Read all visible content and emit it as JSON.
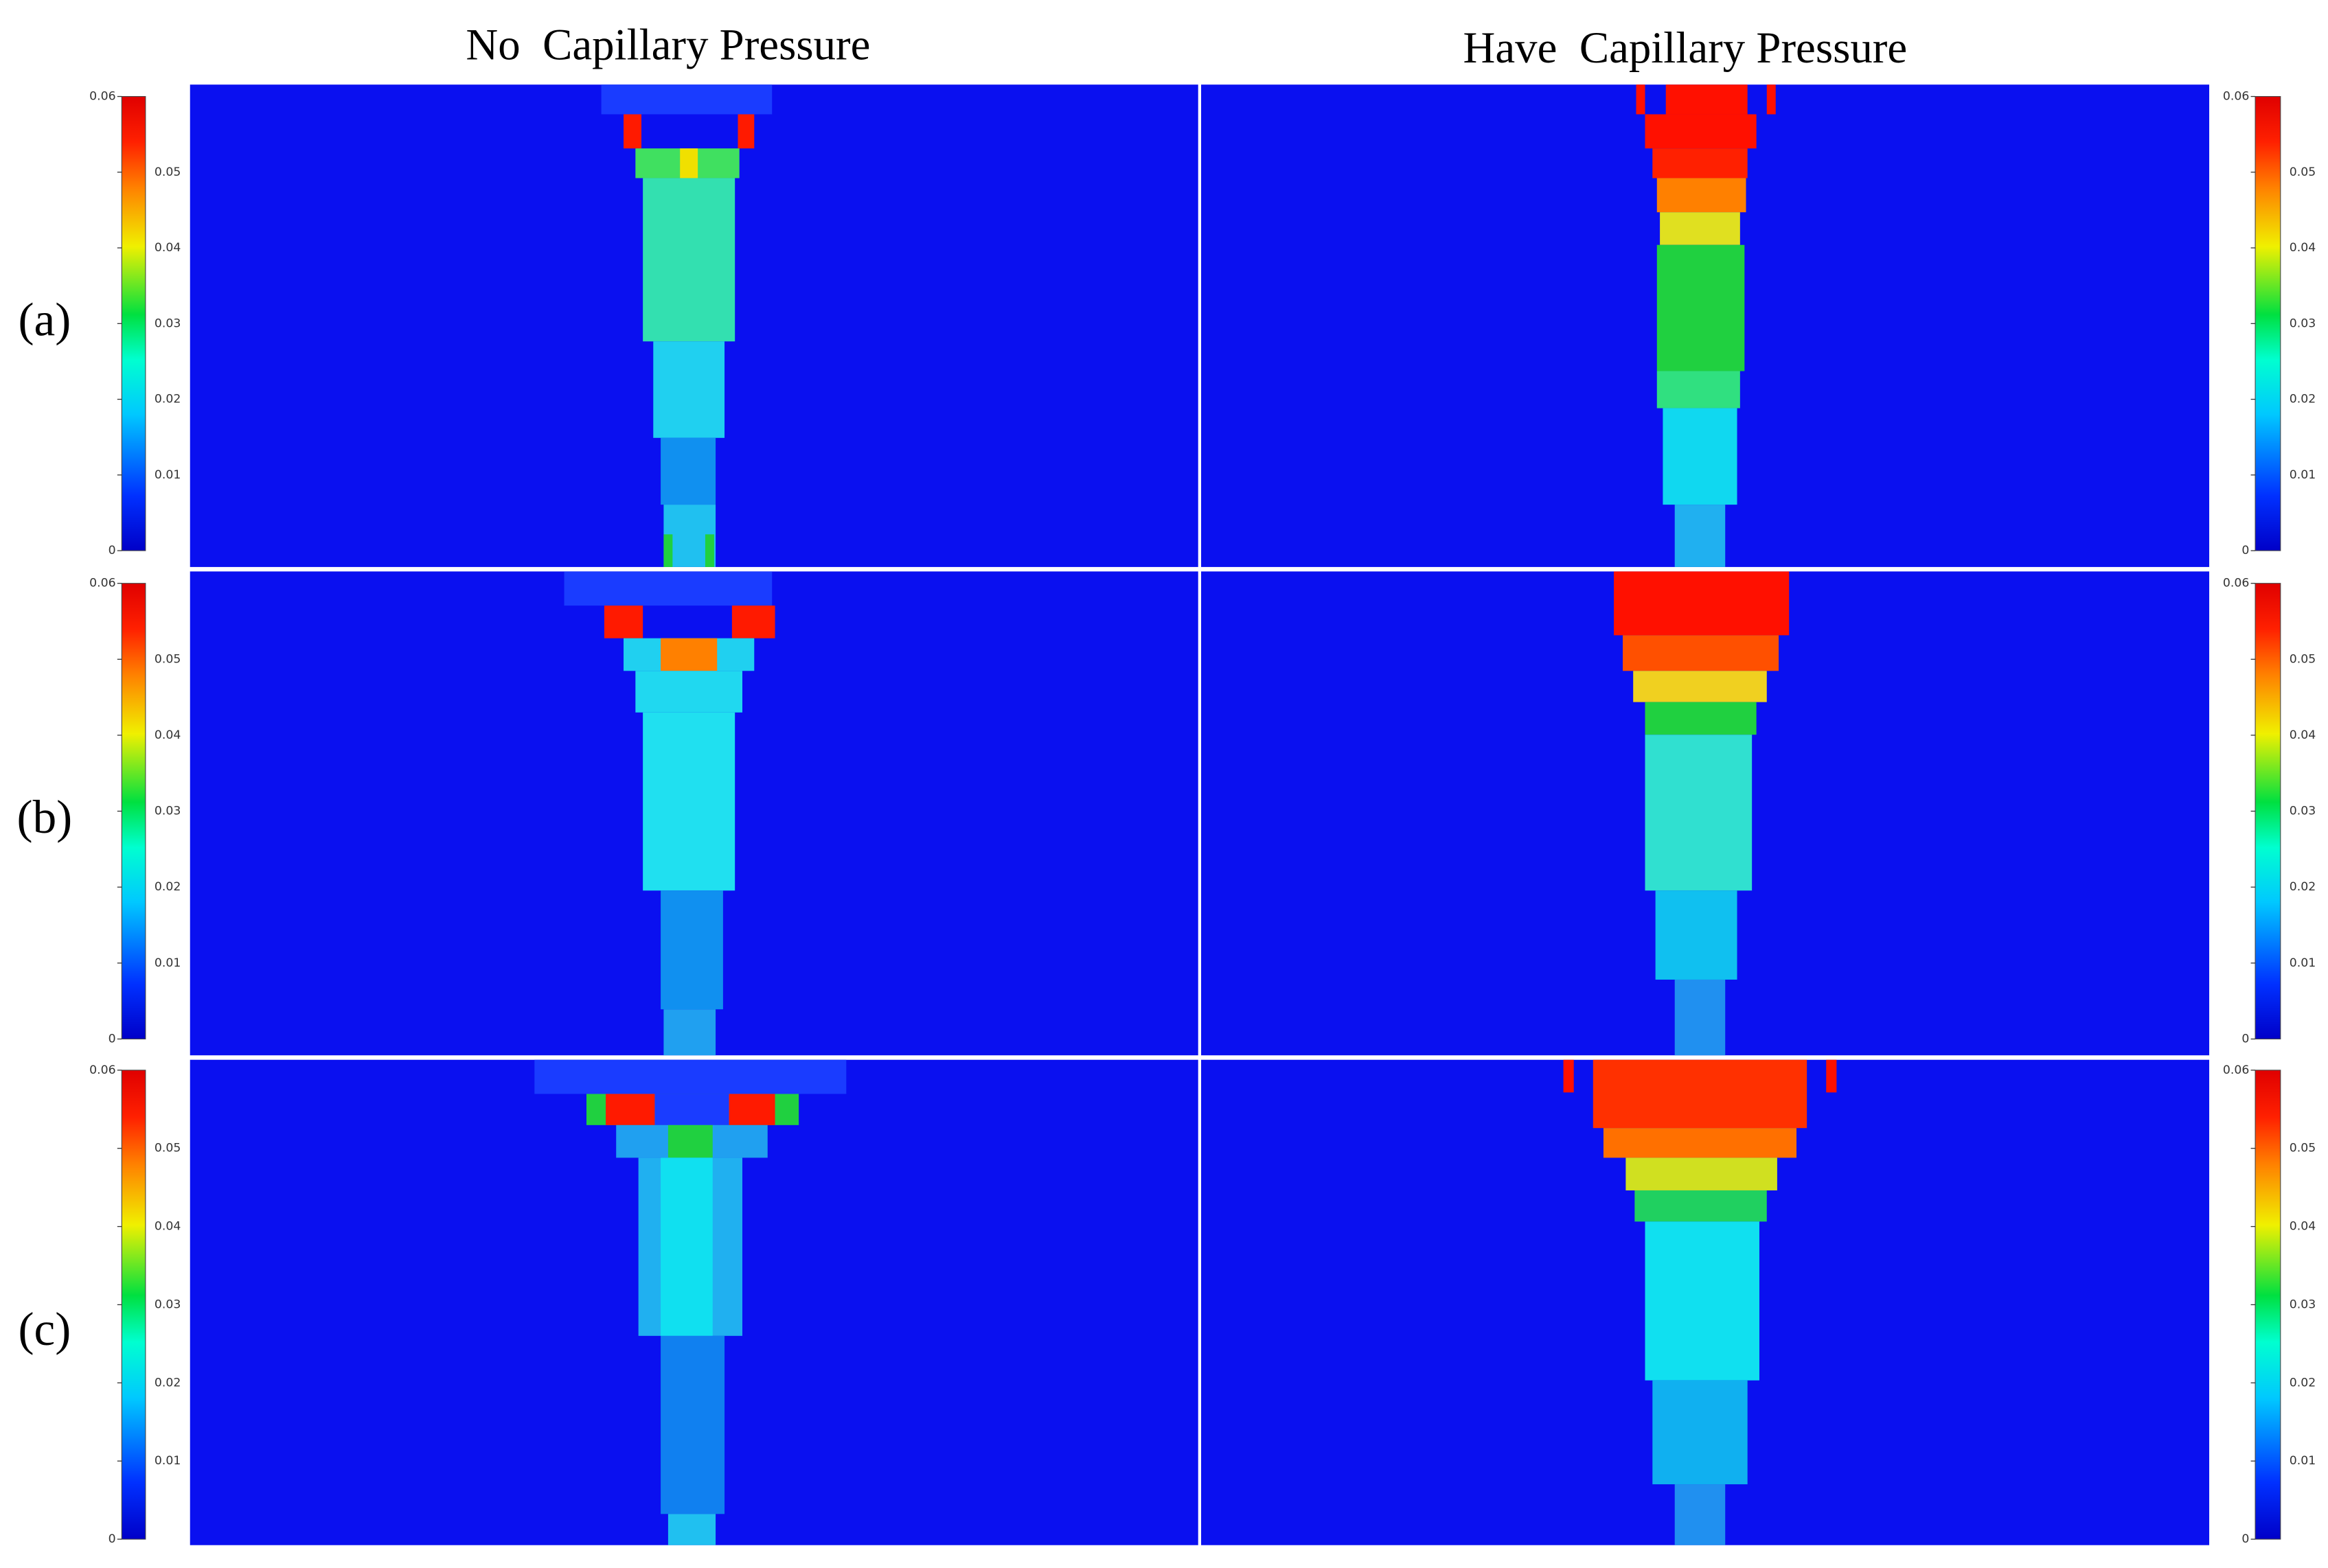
{
  "columns": [
    "No  Capillary Pressure",
    "Have  Capillary Pressure"
  ],
  "rows": [
    "(a)",
    "(b)",
    "(c)"
  ],
  "colorbar": {
    "ticks": [
      0,
      0.01,
      0.02,
      0.03,
      0.04,
      0.05,
      0.06
    ]
  }
}
